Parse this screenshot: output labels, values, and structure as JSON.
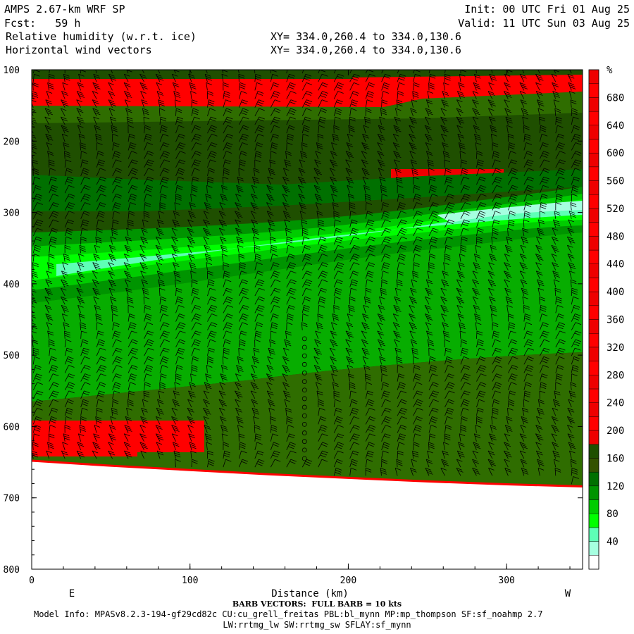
{
  "header": {
    "model": "AMPS 2.67-km WRF SP",
    "forecast": "Fcst:   59 h",
    "init": "Init: 00 UTC Fri 01 Aug 25",
    "valid": "Valid: 11 UTC Sun 03 Aug 25",
    "field1": "Relative humidity (w.r.t. ice)",
    "field2": "Horizontal wind vectors",
    "xsec1": "XY= 334.0,260.4 to 334.0,130.6",
    "xsec2": "XY= 334.0,260.4 to 334.0,130.6"
  },
  "chart_data": {
    "type": "heatmap",
    "title": "Relative humidity (w.r.t. ice)",
    "xlabel": "Distance (km)",
    "ylabel": "",
    "x_ticks": [
      0,
      100,
      200,
      300
    ],
    "y_ticks": [
      100,
      200,
      300,
      400,
      500,
      600,
      700,
      800
    ],
    "xlim": [
      0,
      348
    ],
    "ylim": [
      800,
      100
    ],
    "x_end_labels": {
      "left": "E",
      "right": "W"
    },
    "colorbar": {
      "unit": "%",
      "ticks": [
        40,
        80,
        120,
        160,
        200,
        240,
        280,
        320,
        360,
        400,
        440,
        480,
        520,
        560,
        600,
        640,
        680
      ],
      "colors_low_to_high": [
        "#ffffff",
        "#a6ffe0",
        "#5effb6",
        "#00ff00",
        "#00cc00",
        "#009400",
        "#007000",
        "#335200",
        "#1f4f00"
      ],
      "high_color": "#ff0000",
      "high_color_band_dark": "#ee0000"
    },
    "terrain_pressure": [
      [
        0,
        648
      ],
      [
        50,
        655
      ],
      [
        100,
        661
      ],
      [
        150,
        667
      ],
      [
        200,
        672
      ],
      [
        250,
        677
      ],
      [
        300,
        681
      ],
      [
        348,
        684
      ]
    ],
    "rh_features": [
      {
        "name": "upper-dry-red-band",
        "pressure": [
          115,
          150
        ],
        "value": ">120"
      },
      {
        "name": "upper-red-patch",
        "x": [
          225,
          290
        ],
        "pressure": [
          240,
          262
        ],
        "value": ">120"
      },
      {
        "name": "moist-tongue",
        "value": "40-80",
        "x": [
          0,
          348
        ],
        "pressure_west": [
          270,
          320
        ],
        "pressure_east": [
          350,
          420
        ]
      },
      {
        "name": "low-level-red-layer",
        "x": [
          0,
          110
        ],
        "pressure": [
          590,
          640
        ],
        "value": ">120"
      }
    ],
    "barb_key": "BARB VECTORS:  FULL BARB = 10 kts"
  },
  "footer": {
    "barb_note": "BARB VECTORS:  FULL BARB = 10 kts",
    "model_info": "Model Info: MPASv8.2.3-194-gf29cd82c CU:cu_grell_freitas PBL:bl_mynn MP:mp_thompson SF:sf_noahmp 2.7",
    "model_info2": "LW:rrtmg_lw SW:rrtmg_sw SFLAY:sf_mynn"
  }
}
